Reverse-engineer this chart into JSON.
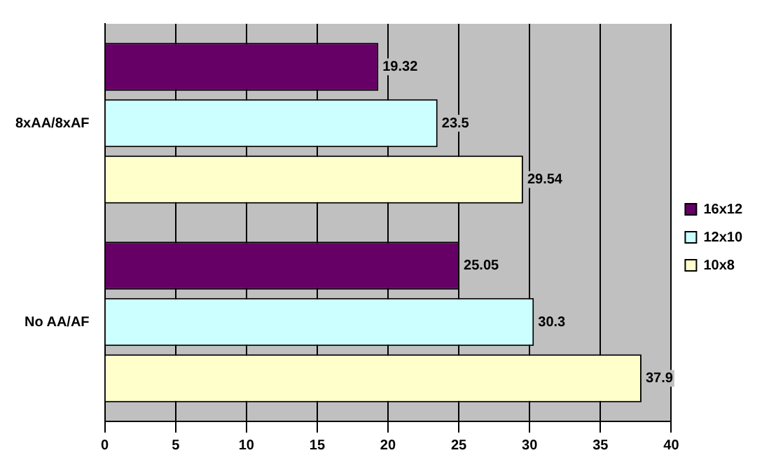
{
  "chart_data": {
    "type": "bar",
    "orientation": "horizontal",
    "categories": [
      "8xAA/8xAF",
      "No AA/AF"
    ],
    "series": [
      {
        "name": "16x12",
        "color": "#660066",
        "values": [
          19.32,
          25.05
        ]
      },
      {
        "name": "12x10",
        "color": "#ccffff",
        "values": [
          23.5,
          30.3
        ]
      },
      {
        "name": "10x8",
        "color": "#ffffcc",
        "values": [
          29.54,
          37.9
        ]
      }
    ],
    "xlim": [
      0,
      40
    ],
    "xticks": [
      0,
      5,
      10,
      15,
      20,
      25,
      30,
      35,
      40
    ],
    "grid": "x",
    "legend": "right",
    "data_labels": true
  }
}
